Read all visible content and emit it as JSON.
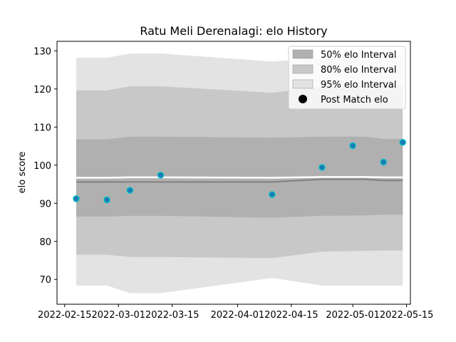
{
  "chart_data": {
    "type": "line",
    "title": "Ratu Meli Derenalagi: elo History",
    "xlabel": "",
    "ylabel": "elo score",
    "xlim": [
      "2022-02-13",
      "2022-05-16"
    ],
    "ylim": [
      63.5,
      132.5
    ],
    "x_ticks": [
      "2022-02-15",
      "2022-03-01",
      "2022-03-15",
      "2022-04-01",
      "2022-04-15",
      "2022-05-01",
      "2022-05-15"
    ],
    "y_ticks": [
      70,
      80,
      90,
      100,
      110,
      120,
      130
    ],
    "grid": false,
    "legend_position": "top-right",
    "band_dates": [
      "2022-02-18",
      "2022-02-26",
      "2022-03-04",
      "2022-03-12",
      "2022-04-10",
      "2022-04-23",
      "2022-05-04",
      "2022-05-09",
      "2022-05-14"
    ],
    "intervals": [
      {
        "name": "50% elo Interval",
        "color": "#b0b0b0",
        "lower": [
          86.5,
          86.5,
          86.7,
          86.7,
          86.2,
          86.7,
          86.8,
          87.0,
          87.0
        ],
        "upper": [
          106.8,
          106.8,
          107.5,
          107.5,
          107.2,
          107.5,
          107.5,
          106.9,
          106.9
        ]
      },
      {
        "name": "80% elo Interval",
        "color": "#c8c8c8",
        "lower": [
          76.5,
          76.5,
          75.9,
          75.9,
          75.6,
          77.3,
          77.5,
          77.6,
          77.6
        ],
        "upper": [
          119.6,
          119.6,
          120.7,
          120.7,
          119.0,
          120.6,
          120.8,
          120.8,
          120.8
        ]
      },
      {
        "name": "95% elo Interval",
        "color": "#e3e3e3",
        "lower": [
          68.4,
          68.4,
          66.4,
          66.4,
          70.4,
          68.4,
          68.4,
          68.4,
          68.4
        ],
        "upper": [
          128.2,
          128.2,
          129.3,
          129.3,
          127.2,
          128.2,
          128.4,
          128.4,
          128.4
        ]
      }
    ],
    "median_line": [
      95.6,
      95.6,
      95.6,
      95.6,
      95.6,
      96.3,
      96.3,
      96.0,
      96.0
    ],
    "reference_line": [
      96.7,
      96.7,
      96.8,
      96.8,
      96.7,
      96.9,
      96.9,
      96.8,
      96.8
    ],
    "post_match": {
      "name": "Post Match elo",
      "dates": [
        "2022-02-18",
        "2022-02-26",
        "2022-03-04",
        "2022-03-12",
        "2022-04-10",
        "2022-04-23",
        "2022-05-01",
        "2022-05-09",
        "2022-05-14"
      ],
      "values": [
        91.2,
        90.9,
        93.4,
        97.4,
        92.3,
        99.4,
        105.1,
        100.8,
        106.0
      ],
      "fill_color": "#1f77b4",
      "edge_color": "#00bfc4"
    }
  }
}
